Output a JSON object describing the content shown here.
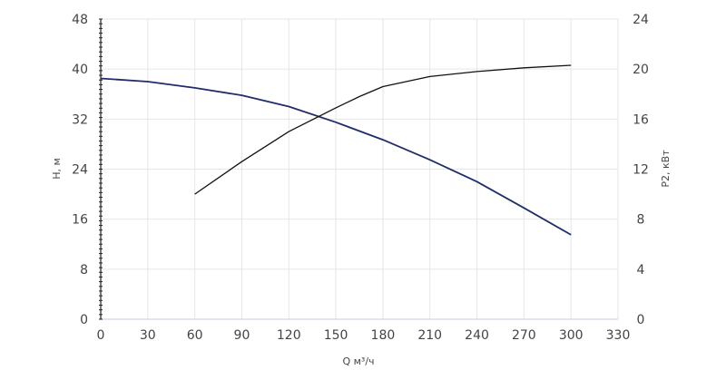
{
  "chart_data": {
    "type": "line",
    "xlabel": "Q м³/ч",
    "ylabel_left": "H, м",
    "ylabel_right": "P2, кВт",
    "xlim": [
      0,
      330
    ],
    "ylim_left": [
      0,
      48
    ],
    "ylim_right": [
      0,
      24
    ],
    "x_ticks": [
      0,
      30,
      60,
      90,
      120,
      150,
      180,
      210,
      240,
      270,
      300,
      330
    ],
    "y_left_ticks": [
      0,
      8,
      16,
      24,
      32,
      40,
      48
    ],
    "y_right_ticks": [
      0,
      4,
      8,
      12,
      16,
      20,
      24
    ],
    "grid": true,
    "series": [
      {
        "axis": "left",
        "color": "#1f2d6b",
        "points": [
          [
            0,
            38.5
          ],
          [
            30,
            38.0
          ],
          [
            60,
            37.0
          ],
          [
            90,
            35.8
          ],
          [
            120,
            34.0
          ],
          [
            150,
            31.5
          ],
          [
            180,
            28.7
          ],
          [
            210,
            25.5
          ],
          [
            240,
            22.0
          ],
          [
            270,
            17.8
          ],
          [
            300,
            13.5
          ]
        ]
      },
      {
        "axis": "right",
        "color": "#111111",
        "points": [
          [
            60,
            10.0
          ],
          [
            90,
            12.6
          ],
          [
            120,
            15.0
          ],
          [
            150,
            16.9
          ],
          [
            165,
            17.8
          ],
          [
            180,
            18.6
          ],
          [
            210,
            19.4
          ],
          [
            240,
            19.8
          ],
          [
            270,
            20.1
          ],
          [
            300,
            20.3
          ]
        ]
      }
    ]
  }
}
